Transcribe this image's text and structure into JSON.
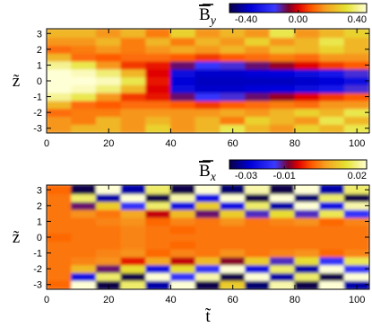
{
  "chart_data": [
    {
      "type": "heatmap",
      "colorbar": {
        "label": {
          "base": "B",
          "sub": "y"
        },
        "clim": [
          -0.4,
          0.4
        ],
        "ticks": [
          {
            "value": -0.4,
            "label": "-0.40"
          },
          {
            "value": 0,
            "label": "0.00"
          },
          {
            "value": 0.4,
            "label": "0.40"
          }
        ]
      },
      "ylabel": "z̃",
      "xlim": [
        0,
        104
      ],
      "ylim": [
        -3.3,
        3.3
      ],
      "xticks": [
        0,
        20,
        40,
        60,
        80,
        100
      ],
      "yticks": [
        -3,
        -2,
        -1,
        0,
        1,
        2,
        3
      ],
      "x": [
        4,
        12,
        20,
        28,
        36,
        44,
        52,
        60,
        68,
        76,
        84,
        92,
        100
      ],
      "y": [
        -3,
        -2.5,
        -2,
        -1.5,
        -1,
        -0.5,
        0,
        0.5,
        1,
        1.5,
        2,
        2.5,
        3
      ],
      "values": [
        [
          0.15,
          0.2,
          0.2,
          0.15,
          0.25,
          0.15,
          0.2,
          0.3,
          0.2,
          0.15,
          0.25,
          0.2,
          0.3
        ],
        [
          0.15,
          0.12,
          0.2,
          0.15,
          0.2,
          0.15,
          0.2,
          0.12,
          0.25,
          0.2,
          0.15,
          0.3,
          0.2
        ],
        [
          0.1,
          0.12,
          0.12,
          0.15,
          0.15,
          0.15,
          0.15,
          0.18,
          0.15,
          0.2,
          0.25,
          0.2,
          0.3
        ],
        [
          0.2,
          0.1,
          0.08,
          0.1,
          0.1,
          0.08,
          0.05,
          0.08,
          0.1,
          0.12,
          0.1,
          0.15,
          0.15
        ],
        [
          0.35,
          0.3,
          0.15,
          0.05,
          0.02,
          -0.08,
          -0.15,
          -0.12,
          -0.08,
          -0.04,
          0,
          0.05,
          0.08
        ],
        [
          0.4,
          0.38,
          0.33,
          0.2,
          0,
          -0.26,
          -0.29,
          -0.29,
          -0.28,
          -0.27,
          -0.26,
          -0.22,
          -0.12
        ],
        [
          0.4,
          0.4,
          0.38,
          0.3,
          0.02,
          -0.28,
          -0.3,
          -0.3,
          -0.3,
          -0.3,
          -0.29,
          -0.28,
          -0.25
        ],
        [
          0.4,
          0.38,
          0.33,
          0.2,
          0,
          -0.26,
          -0.29,
          -0.29,
          -0.28,
          -0.27,
          -0.26,
          -0.22,
          -0.12
        ],
        [
          0.35,
          0.3,
          0.15,
          0.05,
          0.02,
          -0.08,
          -0.15,
          -0.12,
          -0.08,
          -0.04,
          0,
          0.05,
          0.08
        ],
        [
          0.2,
          0.1,
          0.08,
          0.1,
          0.1,
          0.08,
          0.05,
          0.08,
          0.1,
          0.12,
          0.1,
          0.15,
          0.15
        ],
        [
          0.1,
          0.12,
          0.15,
          0.12,
          0.15,
          0.18,
          0.15,
          0.2,
          0.15,
          0.22,
          0.2,
          0.25,
          0.2
        ],
        [
          0.15,
          0.15,
          0.2,
          0.12,
          0.2,
          0.12,
          0.2,
          0.15,
          0.25,
          0.15,
          0.2,
          0.3,
          0.2
        ],
        [
          0.2,
          0.2,
          0.15,
          0.2,
          0.12,
          0.25,
          0.15,
          0.2,
          0.15,
          0.3,
          0.15,
          0.2,
          0.25
        ]
      ]
    },
    {
      "type": "heatmap",
      "colorbar": {
        "label": {
          "base": "B",
          "sub": "x"
        },
        "clim": [
          -0.03,
          0.02
        ],
        "ticks": [
          {
            "value": -0.03,
            "label": "-0.03"
          },
          {
            "value": -0.01,
            "label": "-0.01"
          },
          {
            "value": 0.02,
            "label": "0.02"
          }
        ]
      },
      "ylabel": "z̃",
      "xlabel": "t̃",
      "xlim": [
        0,
        104
      ],
      "ylim": [
        -3.3,
        3.3
      ],
      "xticks": [
        0,
        20,
        40,
        60,
        80,
        100
      ],
      "yticks": [
        -3,
        -2,
        -1,
        0,
        1,
        2,
        3
      ],
      "x": [
        4,
        12,
        20,
        28,
        36,
        44,
        52,
        60,
        68,
        76,
        84,
        92,
        100
      ],
      "y": [
        -3,
        -2.5,
        -2,
        -1.5,
        -1,
        -0.5,
        0,
        0.5,
        1,
        1.5,
        2,
        2.5,
        3
      ],
      "values": [
        [
          0.001,
          0.02,
          -0.03,
          0.015,
          -0.025,
          0.02,
          -0.03,
          0.01,
          -0.028,
          0.018,
          -0.03,
          0.02,
          -0.025
        ],
        [
          0.002,
          -0.02,
          0.015,
          -0.03,
          0.02,
          -0.015,
          0.018,
          -0.03,
          0.02,
          -0.025,
          0.015,
          -0.03,
          0.02
        ],
        [
          0.002,
          0.008,
          -0.01,
          0.012,
          -0.02,
          0.012,
          -0.015,
          0.02,
          -0.02,
          0.015,
          -0.025,
          0.02,
          -0.015
        ],
        [
          0.002,
          0.003,
          0.004,
          -0.004,
          0.006,
          -0.006,
          0.008,
          -0.008,
          0.01,
          -0.012,
          0.012,
          -0.015,
          0.014
        ],
        [
          0.002,
          0.002,
          0.003,
          0.004,
          0.001,
          0.003,
          0.002,
          0.004,
          0.002,
          0.003,
          0.004,
          0.001,
          0.003
        ],
        [
          0.002,
          0.002,
          0.002,
          0.003,
          0.002,
          0.001,
          0.002,
          0.002,
          0.002,
          0.002,
          0.002,
          0.002,
          0.002
        ],
        [
          0.001,
          0.002,
          0.002,
          0.003,
          0.002,
          0.002,
          0.002,
          0.002,
          0.002,
          0.002,
          0.002,
          0.002,
          0.002
        ],
        [
          0.002,
          0.002,
          0.002,
          0.003,
          0.002,
          0.001,
          0.002,
          0.002,
          0.002,
          0.002,
          0.002,
          0.002,
          0.002
        ],
        [
          0.002,
          0.002,
          0.003,
          0.004,
          0.001,
          0.003,
          0.002,
          0.004,
          0.002,
          0.003,
          0.004,
          0.001,
          0.003
        ],
        [
          0.002,
          0.004,
          0.002,
          0.006,
          -0.006,
          0.008,
          -0.01,
          0.01,
          -0.012,
          0.012,
          -0.012,
          0.014,
          -0.015
        ],
        [
          0.002,
          -0.01,
          0.01,
          -0.015,
          0.015,
          -0.02,
          0.01,
          -0.02,
          0.015,
          -0.025,
          0.02,
          -0.02,
          0.018
        ],
        [
          0.002,
          0.015,
          -0.025,
          0.02,
          -0.03,
          0.018,
          -0.02,
          0.02,
          -0.03,
          0.02,
          -0.028,
          0.015,
          -0.03
        ],
        [
          0.001,
          -0.03,
          0.02,
          -0.025,
          0.015,
          -0.03,
          0.02,
          -0.028,
          0.018,
          -0.03,
          0.02,
          -0.025,
          0.015
        ]
      ]
    }
  ]
}
